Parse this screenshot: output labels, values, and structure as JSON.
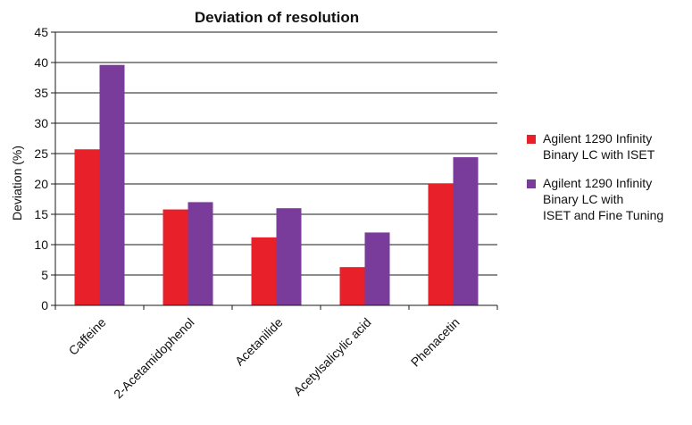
{
  "chart_data": {
    "type": "bar",
    "title": "Deviation of resolution",
    "xlabel": "",
    "ylabel": "Deviation (%)",
    "ylim": [
      0,
      45
    ],
    "yticks": [
      0,
      5,
      10,
      15,
      20,
      25,
      30,
      35,
      40,
      45
    ],
    "grid": true,
    "legend_position": "right",
    "categories": [
      "Caffeine",
      "2-Acetamidophenol",
      "Acetanilide",
      "Acetylsalicylic acid",
      "Phenacetin"
    ],
    "series": [
      {
        "name": "Agilent 1290 Infinity\nBinary LC with ISET",
        "color": "#e8202a",
        "values": [
          25.7,
          15.8,
          11.2,
          6.3,
          20.0
        ]
      },
      {
        "name": "Agilent 1290 Infinity\nBinary LC with\nISET and Fine Tuning",
        "color": "#7a3c9a",
        "values": [
          39.6,
          17.0,
          16.0,
          12.0,
          24.4
        ]
      }
    ]
  }
}
